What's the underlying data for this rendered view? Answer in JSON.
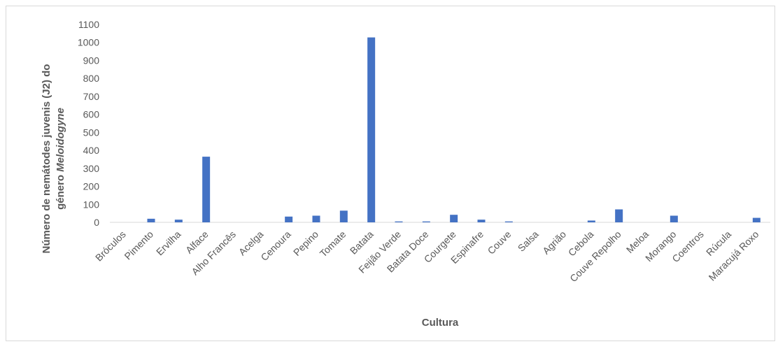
{
  "chart_data": {
    "type": "bar",
    "categories": [
      "Bróculos",
      "Pimento",
      "Ervilha",
      "Alface",
      "Alho Francês",
      "Acelga",
      "Cenoura",
      "Pepino",
      "Tomate",
      "Batata",
      "Feijão Verde",
      "Batata Doce",
      "Courgete",
      "Espinafre",
      "Couve",
      "Salsa",
      "Agrião",
      "Cebola",
      "Couve Repolho",
      "Meloa",
      "Morango",
      "Coentros",
      "Rúcula",
      "Maracujá Roxo"
    ],
    "values": [
      0,
      20,
      15,
      365,
      0,
      0,
      32,
      37,
      65,
      1028,
      5,
      5,
      42,
      15,
      5,
      0,
      0,
      10,
      72,
      0,
      37,
      0,
      0,
      25
    ],
    "title": "",
    "xlabel": "Cultura",
    "ylabel_line1": "Número de nemátodes juvenis (J2) do",
    "ylabel_line2_prefix": "género ",
    "ylabel_line2_italic": "Meloidogyne",
    "ylim": [
      0,
      1100
    ],
    "yticks": [
      0,
      100,
      200,
      300,
      400,
      500,
      600,
      700,
      800,
      900,
      1000,
      1100
    ],
    "bar_color": "#4472c4",
    "grid": false,
    "legend": "none"
  }
}
